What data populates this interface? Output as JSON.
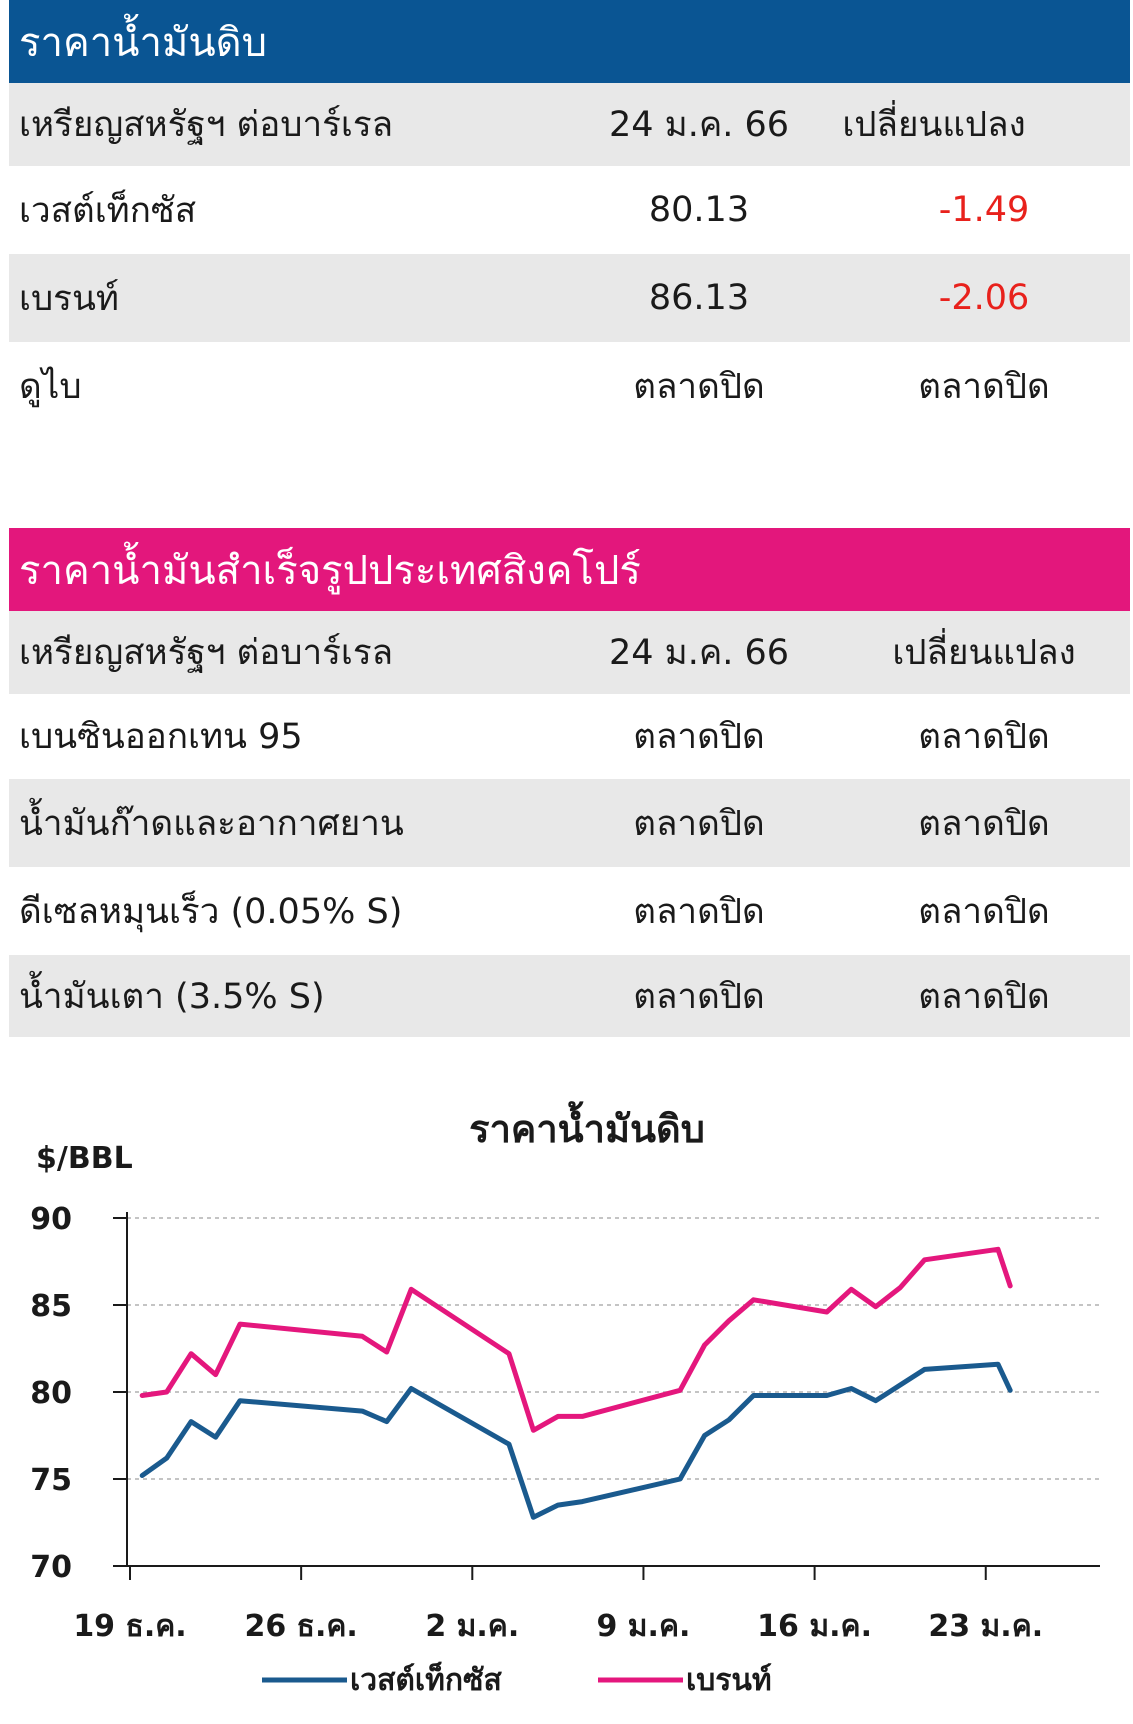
{
  "crude_table": {
    "title": "ราคาน้ำมันดิบ",
    "header": {
      "unit": "เหรียญสหรัฐฯ ต่อบาร์เรล",
      "date": "24 ม.ค. 66",
      "change": "เปลี่ยนแปลง"
    },
    "rows": [
      {
        "name": "เวสต์เท็กซัส",
        "price": "80.13",
        "change": "-1.49"
      },
      {
        "name": "เบรนท์",
        "price": "86.13",
        "change": "-2.06"
      },
      {
        "name": "ดูไบ",
        "price": "ตลาดปิด",
        "change": "ตลาดปิด"
      }
    ]
  },
  "sg_table": {
    "title": "ราคาน้ำมันสำเร็จรูปประเทศสิงคโปร์",
    "header": {
      "unit": "เหรียญสหรัฐฯ ต่อบาร์เรล",
      "date": "24 ม.ค. 66",
      "change": "เปลี่ยนแปลง"
    },
    "rows": [
      {
        "name": "เบนซินออกเทน 95",
        "price": "ตลาดปิด",
        "change": "ตลาดปิด"
      },
      {
        "name": "น้ำมันก๊าดและอากาศยาน",
        "price": "ตลาดปิด",
        "change": "ตลาดปิด"
      },
      {
        "name": "ดีเซลหมุนเร็ว (0.05% S)",
        "price": "ตลาดปิด",
        "change": "ตลาดปิด"
      },
      {
        "name": "น้ำมันเตา (3.5% S)",
        "price": "ตลาดปิด",
        "change": "ตลาดปิด"
      }
    ]
  },
  "chart_data": {
    "type": "line",
    "title": "ราคาน้ำมันดิบ",
    "ylabel": "$/BBL",
    "ylim": [
      70,
      90
    ],
    "yticks": [
      70,
      75,
      80,
      85,
      90
    ],
    "x_tick_labels": [
      "19 ธ.ค.",
      "26 ธ.ค.",
      "2 ม.ค.",
      "9 ม.ค.",
      "16 ม.ค.",
      "23 ม.ค."
    ],
    "x_tick_days": [
      0,
      7,
      14,
      21,
      28,
      35
    ],
    "xlim": [
      0,
      40
    ],
    "grid": "horizontal-dashed",
    "legend": "bottom",
    "series": [
      {
        "name": "เวสต์เท็กซัส",
        "color": "#1a5a8e",
        "x": [
          0.5,
          1.5,
          2.5,
          3.5,
          4.5,
          9.5,
          10.5,
          11.5,
          15.5,
          16.5,
          17.5,
          18.5,
          22.5,
          23.5,
          24.5,
          25.5,
          28.5,
          29.5,
          30.5,
          31.5,
          32.5,
          35.5,
          36
        ],
        "values": [
          75.2,
          76.2,
          78.3,
          77.4,
          79.5,
          78.9,
          78.3,
          80.2,
          77.0,
          72.8,
          73.5,
          73.7,
          75.0,
          77.5,
          78.4,
          79.8,
          79.8,
          80.2,
          79.5,
          80.4,
          81.3,
          81.6,
          80.1
        ]
      },
      {
        "name": "เบรนท์",
        "color": "#e4177d",
        "x": [
          0.5,
          1.5,
          2.5,
          3.5,
          4.5,
          9.5,
          10.5,
          11.5,
          15.5,
          16.5,
          17.5,
          18.5,
          22.5,
          23.5,
          24.5,
          25.5,
          28.5,
          29.5,
          30.5,
          31.5,
          32.5,
          35.5,
          36
        ],
        "values": [
          79.8,
          80.0,
          82.2,
          81.0,
          83.9,
          83.2,
          82.3,
          85.9,
          82.2,
          77.8,
          78.6,
          78.6,
          80.1,
          82.7,
          84.1,
          85.3,
          84.6,
          85.9,
          84.9,
          86.0,
          87.6,
          88.2,
          86.1
        ]
      }
    ]
  }
}
